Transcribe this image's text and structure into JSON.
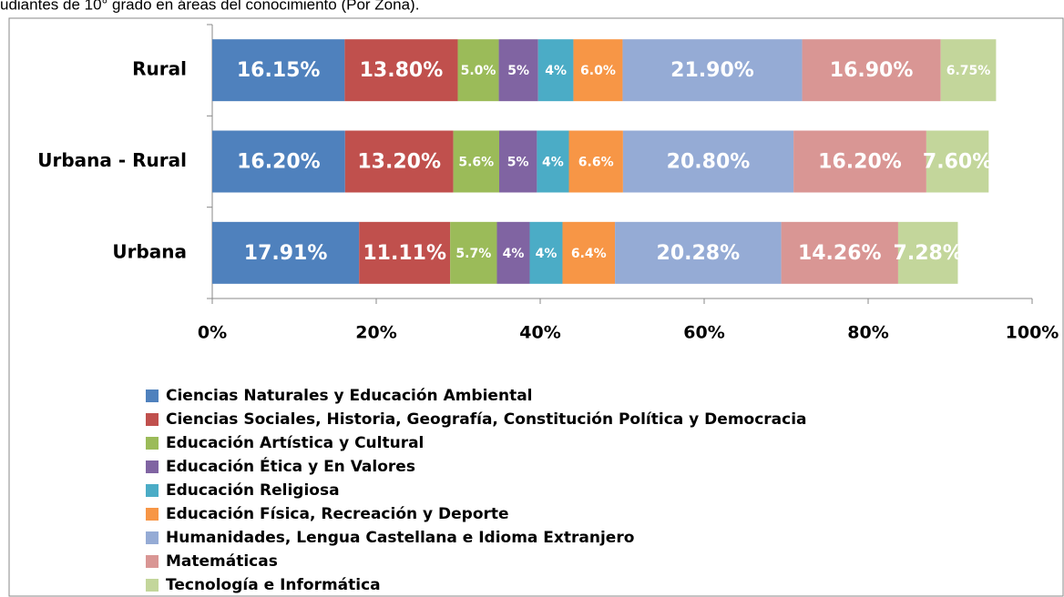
{
  "chart_data": {
    "type": "stacked-barh",
    "title": "udiantes de 10° grado en áreas del conocimiento (Por Zona).",
    "categories": [
      "Rural",
      "Urbana - Rural",
      "Urbana"
    ],
    "xlim": [
      0,
      100
    ],
    "xticks": [
      {
        "value": 0,
        "label": "0%"
      },
      {
        "value": 20,
        "label": "20%"
      },
      {
        "value": 40,
        "label": "40%"
      },
      {
        "value": 60,
        "label": "60%"
      },
      {
        "value": 80,
        "label": "80%"
      },
      {
        "value": 100,
        "label": "100%"
      }
    ],
    "series": [
      {
        "name": "Ciencias Naturales y Educación Ambiental",
        "color": "#4f81bd",
        "values": [
          16.15,
          16.2,
          17.91
        ],
        "value_labels": [
          "16.15%",
          "16.20%",
          "17.91%"
        ]
      },
      {
        "name": "Ciencias Sociales, Historia, Geografía, Constitución Política y Democracia",
        "color": "#c0504d",
        "values": [
          13.8,
          13.2,
          11.11
        ],
        "value_labels": [
          "13.80%",
          "13.20%",
          "11.11%"
        ]
      },
      {
        "name": "Educación Artística y Cultural",
        "color": "#9bbb59",
        "values": [
          5.0,
          5.6,
          5.7
        ],
        "value_labels": [
          "5.0%",
          "5.6%",
          "5.7%"
        ]
      },
      {
        "name": "Educación Ética y En Valores",
        "color": "#8064a2",
        "values": [
          4.8,
          4.6,
          4.0
        ],
        "value_labels": [
          "5%",
          "5%",
          "4%"
        ]
      },
      {
        "name": "Educación Religiosa",
        "color": "#4bacc6",
        "values": [
          4.3,
          3.9,
          4.0
        ],
        "value_labels": [
          "4%",
          "4%",
          "4%"
        ]
      },
      {
        "name": "Educación Física, Recreación y Deporte",
        "color": "#f79646",
        "values": [
          6.0,
          6.6,
          6.4
        ],
        "value_labels": [
          "6.0%",
          "6.6%",
          "6.4%"
        ]
      },
      {
        "name": "Humanidades, Lengua Castellana e Idioma Extranjero",
        "color": "#95abd5",
        "values": [
          21.9,
          20.8,
          20.28
        ],
        "value_labels": [
          "21.90%",
          "20.80%",
          "20.28%"
        ]
      },
      {
        "name": "Matemáticas",
        "color": "#d99694",
        "values": [
          16.9,
          16.2,
          14.26
        ],
        "value_labels": [
          "16.90%",
          "16.20%",
          "14.26%"
        ]
      },
      {
        "name": "Tecnología e Informática",
        "color": "#c3d69b",
        "values": [
          6.75,
          7.6,
          7.28
        ],
        "value_labels": [
          "6.75%",
          "7.60%",
          "7.28%"
        ]
      }
    ]
  }
}
